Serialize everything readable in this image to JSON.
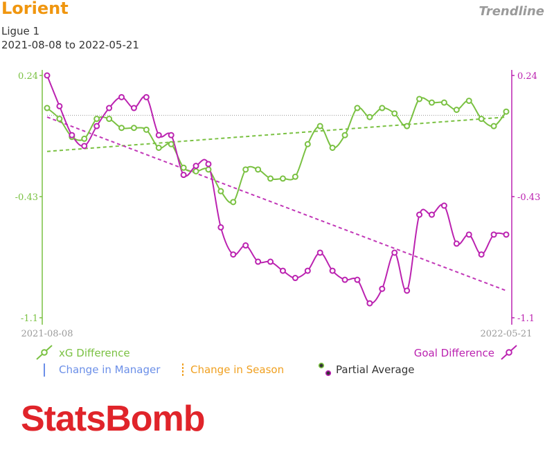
{
  "header": {
    "team": "Lorient",
    "tag": "Trendline",
    "league": "Ligue 1",
    "date_range": "2021-08-08 to 2022-05-21"
  },
  "legend": {
    "xg": "xG Difference",
    "goal": "Goal Difference",
    "manager": "Change in Manager",
    "season": "Change in Season",
    "partial": "Partial Average"
  },
  "brand": "StatsBomb",
  "colors": {
    "xg": "#7ac142",
    "goal": "#bb22b0",
    "manager": "#6b8fe8",
    "season": "#f0a020",
    "average": "#999999"
  },
  "chart_data": {
    "type": "line",
    "x_start_label": "2021-08-08",
    "x_end_label": "2022-05-21",
    "ylim": [
      -1.1,
      0.24
    ],
    "left_ticks": [
      "0.24",
      "-0.43",
      "-1.1"
    ],
    "right_ticks": [
      "0.24",
      "-0.43",
      "-1.1"
    ],
    "average_line": 0.02,
    "series": [
      {
        "name": "xG Difference",
        "values": [
          0.06,
          0.0,
          -0.1,
          -0.11,
          0.0,
          0.0,
          -0.05,
          -0.05,
          -0.06,
          -0.16,
          -0.14,
          -0.27,
          -0.29,
          -0.28,
          -0.4,
          -0.46,
          -0.28,
          -0.28,
          -0.33,
          -0.33,
          -0.32,
          -0.14,
          -0.04,
          -0.16,
          -0.09,
          0.06,
          0.01,
          0.06,
          0.03,
          -0.04,
          0.11,
          0.09,
          0.09,
          0.05,
          0.1,
          0.0,
          -0.04,
          0.04
        ],
        "trend": [
          -0.18,
          0.01
        ]
      },
      {
        "name": "Goal Difference",
        "values": [
          0.24,
          0.07,
          -0.09,
          -0.15,
          -0.04,
          0.06,
          0.12,
          0.06,
          0.12,
          -0.09,
          -0.09,
          -0.31,
          -0.26,
          -0.25,
          -0.6,
          -0.75,
          -0.7,
          -0.79,
          -0.79,
          -0.84,
          -0.88,
          -0.84,
          -0.74,
          -0.84,
          -0.89,
          -0.89,
          -1.02,
          -0.94,
          -0.74,
          -0.95,
          -0.53,
          -0.53,
          -0.48,
          -0.69,
          -0.64,
          -0.75,
          -0.64,
          -0.64
        ],
        "trend": [
          0.01,
          -0.95
        ]
      }
    ]
  }
}
